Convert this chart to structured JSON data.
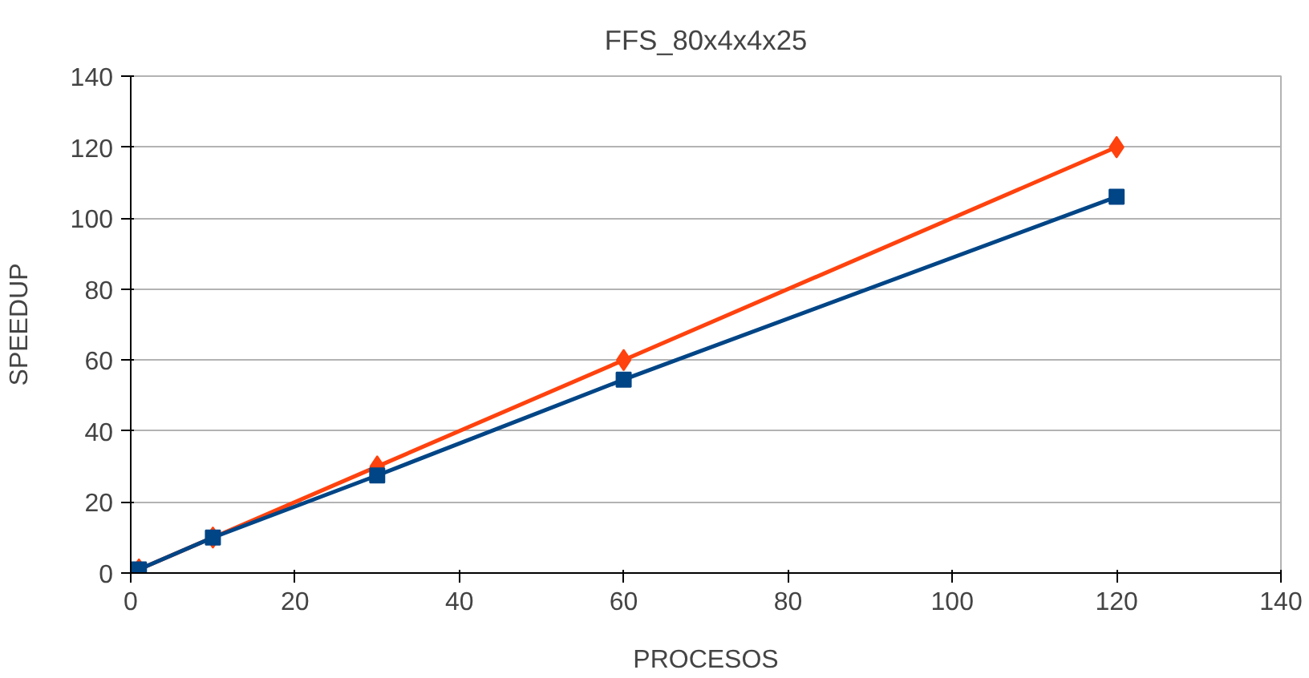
{
  "chart_data": {
    "type": "line",
    "title": "FFS_80x4x4x25",
    "xlabel": "PROCESOS",
    "ylabel": "SPEEDUP",
    "x": [
      1,
      10,
      30,
      60,
      120
    ],
    "series": [
      {
        "color": "#ff420e",
        "marker": "diamond",
        "values": [
          1,
          10,
          30,
          60,
          120
        ]
      },
      {
        "color": "#004586",
        "marker": "square",
        "values": [
          1,
          10,
          27.5,
          54.5,
          106
        ]
      }
    ],
    "xlim": [
      0,
      140
    ],
    "xticks": [
      0,
      20,
      40,
      60,
      80,
      100,
      120,
      140
    ],
    "ylim": [
      0,
      140
    ],
    "yticks": [
      0,
      20,
      40,
      60,
      80,
      100,
      120,
      140
    ],
    "grid": "y",
    "line_style": "solid"
  }
}
